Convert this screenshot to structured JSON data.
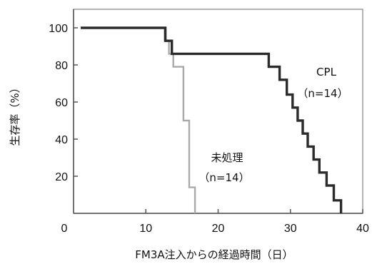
{
  "chart_data": {
    "type": "line",
    "step": true,
    "title": "",
    "xlabel": "FM3A注入からの経過時間（日）",
    "ylabel": "生存率（%）",
    "xlim": [
      0,
      40
    ],
    "ylim": [
      0,
      110
    ],
    "xticks": [
      0,
      10,
      20,
      30,
      40
    ],
    "yticks": [
      20,
      40,
      60,
      80,
      100
    ],
    "grid": false,
    "legend": "none",
    "series": [
      {
        "name": "未処理",
        "annotation": [
          "未処理",
          "（n=14）"
        ],
        "color": "#a9a9a9",
        "x": [
          1,
          12,
          12.6,
          13.2,
          13.8,
          14.5,
          15.2,
          16,
          16.8
        ],
        "y": [
          100,
          100,
          93,
          86,
          79,
          79,
          50,
          14,
          0
        ]
      },
      {
        "name": "CPL",
        "annotation": [
          "CPL",
          "（n=14）"
        ],
        "color": "#2b2b2b",
        "x": [
          1,
          12,
          12.7,
          13.6,
          24,
          27,
          28.5,
          29.5,
          30.3,
          31,
          31.7,
          32.4,
          33.2,
          34,
          35,
          36,
          37
        ],
        "y": [
          100,
          100,
          93,
          86,
          86,
          79,
          72,
          64,
          57,
          50,
          43,
          36,
          29,
          22,
          15,
          7,
          0
        ]
      }
    ]
  }
}
